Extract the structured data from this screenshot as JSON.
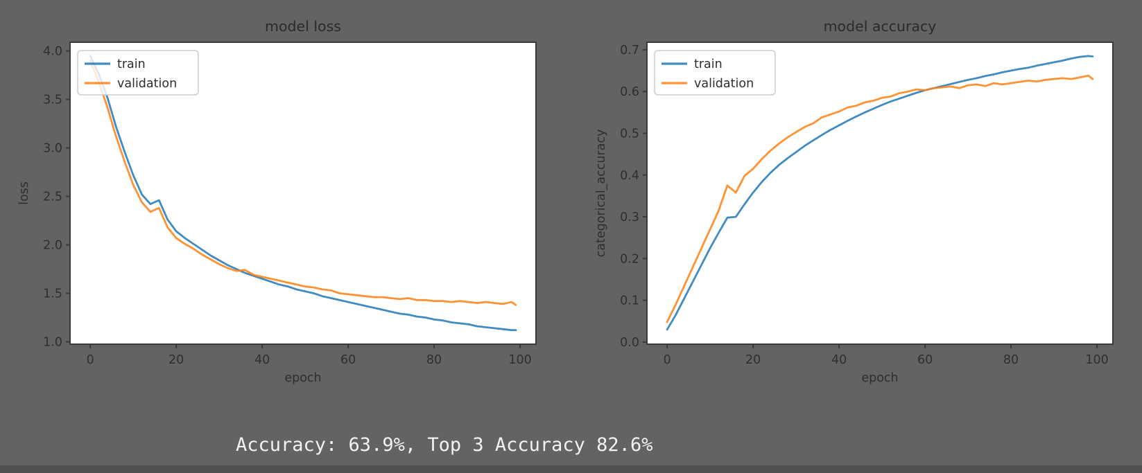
{
  "page": {
    "background_color": "#636363",
    "bottom_strip_color": "#515151",
    "status_line": {
      "text": "Accuracy: 63.9%, Top 3 Accuracy 82.6%",
      "color": "#f2f2f2"
    }
  },
  "chart_style": {
    "plot_background": "#ffffff",
    "spine_color": "#3a3a3a",
    "tick_color": "#3a3a3a",
    "text_color": "#2e2e2e",
    "title_color": "#2a2a2a",
    "legend_border_color": "#cccccc",
    "legend_fill": "rgba(255,255,255,0.8)",
    "line_opacity": 0.85,
    "line_width": 2.8
  },
  "chart_data": [
    {
      "type": "line",
      "title": "model loss",
      "xlabel": "epoch",
      "ylabel": "loss",
      "legend_position": "upper left",
      "grid": false,
      "xlim": [
        -4.7,
        103.7
      ],
      "ylim": [
        0.975,
        4.09
      ],
      "xticks": [
        0,
        20,
        40,
        60,
        80,
        100
      ],
      "xtick_labels": [
        "0",
        "20",
        "40",
        "60",
        "80",
        "100"
      ],
      "yticks": [
        1.0,
        1.5,
        2.0,
        2.5,
        3.0,
        3.5,
        4.0
      ],
      "ytick_labels": [
        "1.0",
        "1.5",
        "2.0",
        "2.5",
        "3.0",
        "3.5",
        "4.0"
      ],
      "x": [
        0,
        2,
        4,
        6,
        8,
        10,
        12,
        14,
        16,
        18,
        20,
        22,
        24,
        26,
        28,
        30,
        32,
        34,
        36,
        38,
        40,
        42,
        44,
        46,
        48,
        50,
        52,
        54,
        56,
        58,
        60,
        62,
        64,
        66,
        68,
        70,
        72,
        74,
        76,
        78,
        80,
        82,
        84,
        86,
        88,
        90,
        92,
        94,
        96,
        98,
        99
      ],
      "series": [
        {
          "name": "train",
          "color": "#1f77b4",
          "values": [
            3.95,
            3.76,
            3.52,
            3.22,
            2.96,
            2.72,
            2.52,
            2.42,
            2.46,
            2.26,
            2.14,
            2.07,
            2.01,
            1.95,
            1.89,
            1.84,
            1.79,
            1.75,
            1.71,
            1.68,
            1.65,
            1.62,
            1.59,
            1.57,
            1.54,
            1.52,
            1.5,
            1.47,
            1.45,
            1.43,
            1.41,
            1.39,
            1.37,
            1.35,
            1.33,
            1.31,
            1.29,
            1.28,
            1.26,
            1.25,
            1.23,
            1.22,
            1.2,
            1.19,
            1.18,
            1.16,
            1.15,
            1.14,
            1.13,
            1.12,
            1.12
          ]
        },
        {
          "name": "validation",
          "color": "#ff7f0e",
          "values": [
            3.9,
            3.68,
            3.42,
            3.12,
            2.86,
            2.62,
            2.44,
            2.34,
            2.38,
            2.18,
            2.07,
            2.01,
            1.96,
            1.9,
            1.85,
            1.8,
            1.76,
            1.73,
            1.74,
            1.69,
            1.67,
            1.65,
            1.63,
            1.61,
            1.59,
            1.57,
            1.56,
            1.54,
            1.53,
            1.5,
            1.49,
            1.48,
            1.47,
            1.46,
            1.46,
            1.45,
            1.44,
            1.45,
            1.43,
            1.43,
            1.42,
            1.42,
            1.41,
            1.42,
            1.41,
            1.4,
            1.41,
            1.4,
            1.39,
            1.41,
            1.38
          ]
        }
      ]
    },
    {
      "type": "line",
      "title": "model accuracy",
      "xlabel": "epoch",
      "ylabel": "categorical_accuracy",
      "legend_position": "upper left",
      "grid": false,
      "xlim": [
        -4.7,
        103.7
      ],
      "ylim": [
        -0.005,
        0.718
      ],
      "xticks": [
        0,
        20,
        40,
        60,
        80,
        100
      ],
      "xtick_labels": [
        "0",
        "20",
        "40",
        "60",
        "80",
        "100"
      ],
      "yticks": [
        0.0,
        0.1,
        0.2,
        0.3,
        0.4,
        0.5,
        0.6,
        0.7
      ],
      "ytick_labels": [
        "0.0",
        "0.1",
        "0.2",
        "0.3",
        "0.4",
        "0.5",
        "0.6",
        "0.7"
      ],
      "x": [
        0,
        2,
        4,
        6,
        8,
        10,
        12,
        14,
        16,
        18,
        20,
        22,
        24,
        26,
        28,
        30,
        32,
        34,
        36,
        38,
        40,
        42,
        44,
        46,
        48,
        50,
        52,
        54,
        56,
        58,
        60,
        62,
        64,
        66,
        68,
        70,
        72,
        74,
        76,
        78,
        80,
        82,
        84,
        86,
        88,
        90,
        92,
        94,
        96,
        98,
        99
      ],
      "series": [
        {
          "name": "train",
          "color": "#1f77b4",
          "values": [
            0.03,
            0.065,
            0.105,
            0.145,
            0.185,
            0.225,
            0.262,
            0.298,
            0.3,
            0.33,
            0.358,
            0.383,
            0.405,
            0.424,
            0.44,
            0.455,
            0.47,
            0.483,
            0.496,
            0.508,
            0.519,
            0.53,
            0.54,
            0.55,
            0.559,
            0.568,
            0.576,
            0.583,
            0.59,
            0.597,
            0.603,
            0.608,
            0.613,
            0.618,
            0.623,
            0.628,
            0.632,
            0.637,
            0.641,
            0.646,
            0.65,
            0.654,
            0.657,
            0.662,
            0.666,
            0.67,
            0.674,
            0.679,
            0.683,
            0.685,
            0.684
          ]
        },
        {
          "name": "validation",
          "color": "#ff7f0e",
          "values": [
            0.048,
            0.09,
            0.135,
            0.18,
            0.225,
            0.27,
            0.315,
            0.375,
            0.358,
            0.398,
            0.415,
            0.438,
            0.458,
            0.475,
            0.49,
            0.503,
            0.515,
            0.524,
            0.538,
            0.545,
            0.552,
            0.562,
            0.566,
            0.574,
            0.578,
            0.585,
            0.588,
            0.596,
            0.6,
            0.605,
            0.603,
            0.608,
            0.61,
            0.612,
            0.608,
            0.615,
            0.617,
            0.613,
            0.62,
            0.617,
            0.62,
            0.623,
            0.626,
            0.624,
            0.628,
            0.63,
            0.632,
            0.63,
            0.634,
            0.638,
            0.63
          ]
        }
      ]
    }
  ]
}
